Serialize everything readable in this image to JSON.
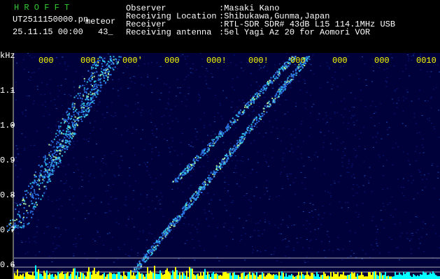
{
  "header": {
    "program": "H R O F F T",
    "filename": "UT2511150000.pn",
    "tag": "meteor",
    "datetime": "25.11.15 00:00",
    "count": "43_"
  },
  "info": [
    {
      "label": "Observer",
      "value": ":Masaki Kano"
    },
    {
      "label": "Receiving Location",
      "value": ":Shibukawa,Gunma,Japan"
    },
    {
      "label": "Receiver",
      "value": ":RTL-SDR SDR# 43dB L15 114.1MHz USB"
    },
    {
      "label": "Receiving antenna",
      "value": ":5el Yagi Az 20 for Aomori VOR"
    }
  ],
  "axis": {
    "unit": "kHz",
    "ticks": [
      "1.1",
      "1.0",
      "0.9",
      "0.8",
      "0.7",
      "0.6"
    ]
  },
  "time_labels": [
    "000",
    "000:",
    "000'",
    "000",
    "000!",
    "000!",
    "000",
    "000",
    "000",
    "0010"
  ]
}
